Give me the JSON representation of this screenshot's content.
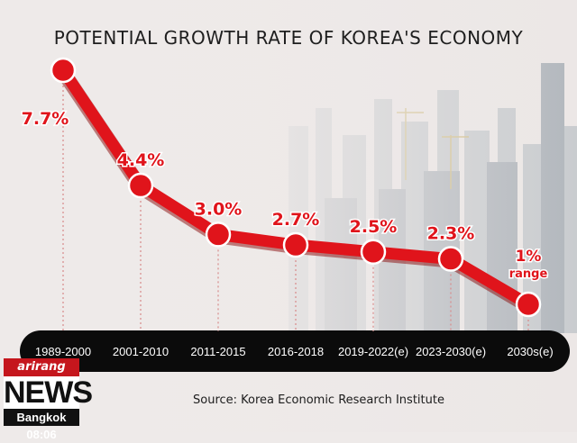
{
  "chart_data": {
    "type": "line",
    "title": "POTENTIAL GROWTH RATE OF KOREA'S ECONOMY",
    "categories": [
      "1989-2000",
      "2001-2010",
      "2011-2015",
      "2016-2018",
      "2019-2022(e)",
      "2023-2030(e)",
      "2030s(e)"
    ],
    "values": [
      7.7,
      4.4,
      3.0,
      2.7,
      2.5,
      2.3,
      1
    ],
    "value_labels": [
      "7.7%",
      "4.4%",
      "3.0%",
      "2.7%",
      "2.5%",
      "2.3%",
      "1%"
    ],
    "last_label_suffix": "range",
    "ylim": [
      1,
      7.7
    ],
    "grid": false,
    "legend": "none",
    "colors": {
      "line": "#e0141b",
      "label": "#e0141b",
      "axis_bar": "#0b0b0b",
      "category_text": "#ffffff"
    }
  },
  "source": "Source: Korea Economic Research Institute",
  "news_bug": {
    "brand": "arirang",
    "program": "NEWS",
    "location_time": "Bangkok 08:06"
  }
}
